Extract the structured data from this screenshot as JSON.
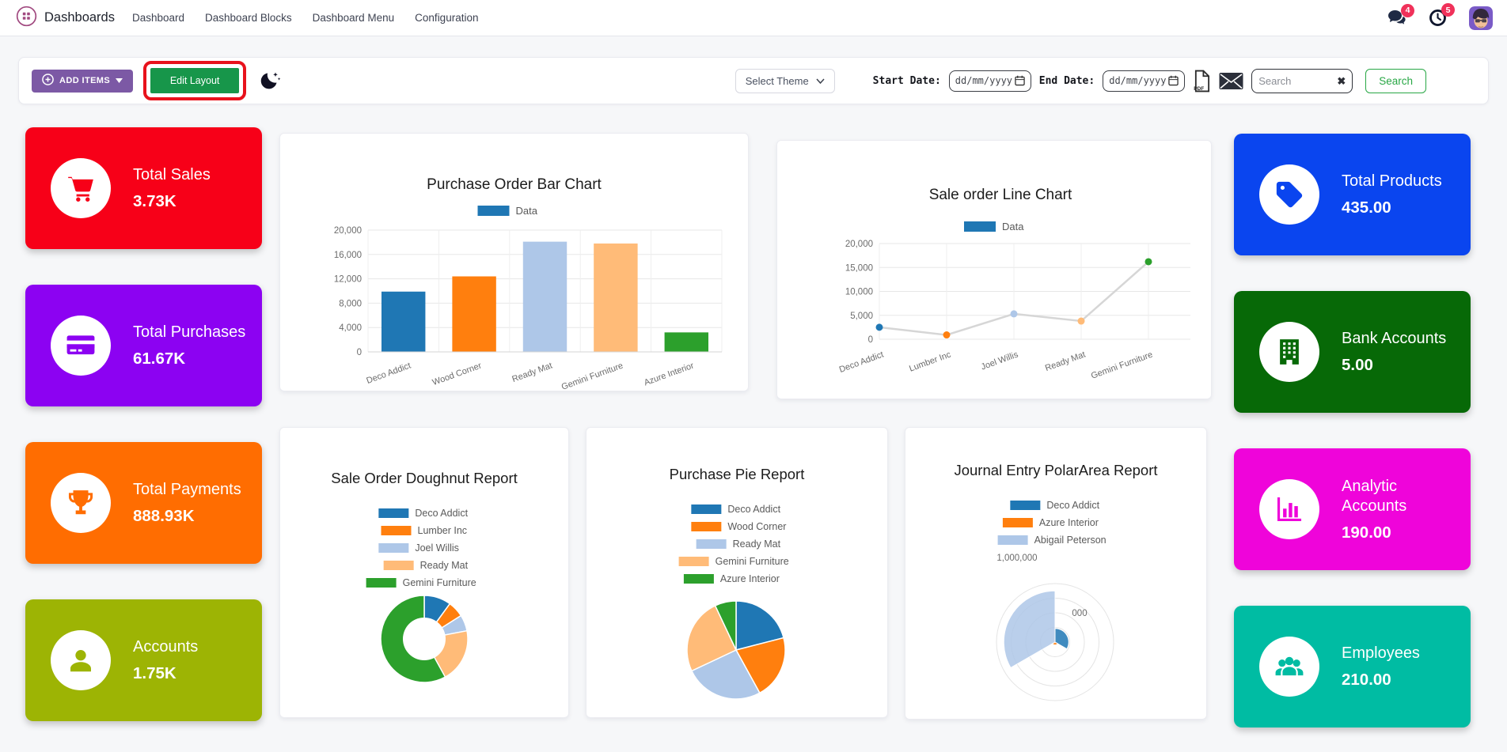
{
  "nav": {
    "brand": "Dashboards",
    "items": [
      {
        "label": "Dashboard"
      },
      {
        "label": "Dashboard Blocks"
      },
      {
        "label": "Dashboard Menu"
      },
      {
        "label": "Configuration"
      }
    ],
    "message_badge": "4",
    "activity_badge": "5"
  },
  "toolbar": {
    "add_items_label": "ADD ITEMS",
    "edit_layout_label": "Edit Layout",
    "select_theme_label": "Select Theme",
    "start_date_label": "Start Date:",
    "end_date_label": "End Date:",
    "date_placeholder": "dd/mm/yyyy",
    "pdf_label": "PDF",
    "search_placeholder": "Search",
    "clear_glyph": "✖",
    "search_button_label": "Search"
  },
  "tiles_left": [
    {
      "label": "Total Sales",
      "value": "3.73K",
      "color": "#f70018",
      "icon": "cart-icon"
    },
    {
      "label": "Total Purchases",
      "value": "61.67K",
      "color": "#8c02f2",
      "icon": "credit-card-icon"
    },
    {
      "label": "Total Payments",
      "value": "888.93K",
      "color": "#ff6d01",
      "icon": "trophy-icon"
    },
    {
      "label": "Accounts",
      "value": "1.75K",
      "color": "#9db404",
      "icon": "person-icon"
    }
  ],
  "tiles_right": [
    {
      "label": "Total Products",
      "value": "435.00",
      "color": "#0a45ef",
      "icon": "tag-icon"
    },
    {
      "label": "Bank Accounts",
      "value": "5.00",
      "color": "#076907",
      "icon": "building-icon"
    },
    {
      "label": "Analytic Accounts",
      "value": "190.00",
      "color": "#ef04da",
      "icon": "bar-chart-icon"
    },
    {
      "label": "Employees",
      "value": "210.00",
      "color": "#00bca3",
      "icon": "people-icon"
    }
  ],
  "chart_data": [
    {
      "id": "purchase-order-bar-chart",
      "type": "bar",
      "title": "Purchase Order Bar Chart",
      "legend_label": "Data",
      "legend_color": "#1f77b4",
      "categories": [
        "Deco Addict",
        "Wood Corner",
        "Ready Mat",
        "Gemini Furniture",
        "Azure Interior"
      ],
      "values": [
        9900,
        12400,
        18100,
        17800,
        3200
      ],
      "colors": [
        "#1f77b4",
        "#ff7f0e",
        "#aec7e8",
        "#ffbb78",
        "#2ca02c"
      ],
      "yticks": [
        0,
        4000,
        8000,
        12000,
        16000,
        20000
      ],
      "ylim": [
        0,
        20000
      ]
    },
    {
      "id": "sale-order-line-chart",
      "type": "line",
      "title": "Sale order Line Chart",
      "legend_label": "Data",
      "legend_color": "#1f77b4",
      "categories": [
        "Deco Addict",
        "Lumber Inc",
        "Joel Willis",
        "Ready Mat",
        "Gemini Furniture"
      ],
      "values": [
        2500,
        900,
        5300,
        3800,
        16200
      ],
      "point_colors": [
        "#1f77b4",
        "#ff7f0e",
        "#aec7e8",
        "#ffbb78",
        "#2ca02c"
      ],
      "line_color": "#d6d6d6",
      "yticks": [
        0,
        5000,
        10000,
        15000,
        20000
      ],
      "ylim": [
        0,
        20000
      ]
    },
    {
      "id": "sale-order-doughnut-report",
      "type": "doughnut",
      "title": "Sale Order Doughnut Report",
      "labels": [
        "Deco Addict",
        "Lumber Inc",
        "Joel Willis",
        "Ready Mat",
        "Gemini Furniture"
      ],
      "values": [
        10,
        6,
        6,
        20,
        58
      ],
      "colors": [
        "#1f77b4",
        "#ff7f0e",
        "#aec7e8",
        "#ffbb78",
        "#2ca02c"
      ]
    },
    {
      "id": "purchase-pie-report",
      "type": "pie",
      "title": "Purchase Pie Report",
      "labels": [
        "Deco Addict",
        "Wood Corner",
        "Ready Mat",
        "Gemini Furniture",
        "Azure Interior"
      ],
      "values": [
        21,
        21,
        26,
        25,
        7
      ],
      "colors": [
        "#1f77b4",
        "#ff7f0e",
        "#aec7e8",
        "#ffbb78",
        "#2ca02c"
      ]
    },
    {
      "id": "journal-entry-polararea-report",
      "type": "polarArea",
      "title": "Journal Entry PolarArea Report",
      "labels": [
        "Deco Addict",
        "Azure Interior",
        "Abigail Peterson"
      ],
      "values": [
        280000,
        60000,
        1050000
      ],
      "rmax": 1200000,
      "colors": [
        "#1f77b4",
        "#ff7f0e",
        "#aec7e8"
      ],
      "scale_labels": [
        "1,000,000",
        "000"
      ]
    }
  ]
}
